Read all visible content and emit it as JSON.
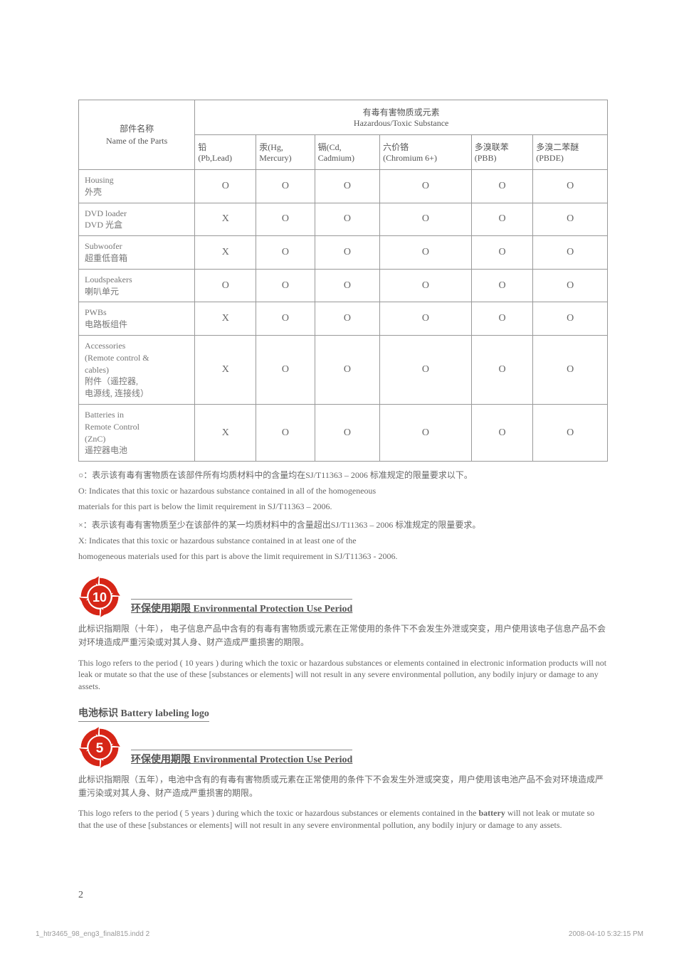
{
  "table": {
    "header_group": "有毒有害物质或元素\nHazardous/Toxic Substance",
    "parts_label_cn": "部件名称",
    "parts_label_en": "Name of the Parts",
    "columns": [
      {
        "cn": "铅",
        "en": "(Pb,Lead)"
      },
      {
        "cn": "汞(Hg,",
        "en": "Mercury)"
      },
      {
        "cn": "镉(Cd,",
        "en": "Cadmium)"
      },
      {
        "cn": "六价铬",
        "en": "(Chromium 6+)"
      },
      {
        "cn": "多溴联苯",
        "en": "(PBB)"
      },
      {
        "cn": "多溴二苯醚",
        "en": "(PBDE)"
      }
    ],
    "rows": [
      {
        "name": "Housing\n外壳",
        "vals": [
          "O",
          "O",
          "O",
          "O",
          "O",
          "O"
        ]
      },
      {
        "name": "DVD loader\nDVD 光盒",
        "vals": [
          "X",
          "O",
          "O",
          "O",
          "O",
          "O"
        ]
      },
      {
        "name": "Subwoofer\n超重低音箱",
        "vals": [
          "X",
          "O",
          "O",
          "O",
          "O",
          "O"
        ]
      },
      {
        "name": "Loudspeakers\n喇叭单元",
        "vals": [
          "O",
          "O",
          "O",
          "O",
          "O",
          "O"
        ]
      },
      {
        "name": "PWBs\n电路板组件",
        "vals": [
          "X",
          "O",
          "O",
          "O",
          "O",
          "O"
        ]
      },
      {
        "name": "Accessories\n(Remote control &\ncables)\n附件（遥控器,\n电源线, 连接线）",
        "vals": [
          "X",
          "O",
          "O",
          "O",
          "O",
          "O"
        ]
      },
      {
        "name": "Batteries in\nRemote Control\n(ZnC)\n遥控器电池",
        "vals": [
          "X",
          "O",
          "O",
          "O",
          "O",
          "O"
        ]
      }
    ]
  },
  "notes": {
    "o_cn": "○：表示该有毒有害物质在该部件所有均质材料中的含量均在SJ/T11363 – 2006 标准规定的限量要求以下。",
    "o_en1": "O: Indicates that this toxic or hazardous substance contained in all of the homogeneous",
    "o_en2": "materials for this part is below the limit requirement in SJ/T11363 – 2006.",
    "x_cn": "×：表示该有毒有害物质至少在该部件的某一均质材料中的含量超出SJ/T11363 – 2006 标准规定的限量要求。",
    "x_en1": "X: Indicates that this toxic or hazardous substance contained in at least one of the",
    "x_en2": "homogeneous materials used for this part is above the limit requirement in SJ/T11363 - 2006."
  },
  "ep10": {
    "title": "环保使用期限 Environmental Protection Use Period",
    "number": "10",
    "cn": "此标识指期限（十年）， 电子信息产品中含有的有毒有害物质或元素在正常使用的条件下不会发生外泄或突变，用户使用该电子信息产品不会对环境造成严重污染或对其人身、财产造成严重损害的期限。",
    "en": "This logo refers to the period ( 10 years ) during which the toxic or hazardous substances or elements contained in electronic information products will not leak or mutate so that the use of these [substances or elements] will not result in any severe environmental pollution, any bodily injury or damage to any assets."
  },
  "battery": {
    "title": "电池标识 Battery labeling logo",
    "ep_title": "环保使用期限 Environmental Protection Use Period",
    "number": "5",
    "cn": "此标识指期限（五年），电池中含有的有毒有害物质或元素在正常使用的条件下不会发生外泄或突变，用户使用该电池产品不会对环境造成严重污染或对其人身、财产造成严重损害的期限。",
    "en_p1": "This logo refers to the period ( 5 years ) during which the toxic or hazardous substances or elements contained in the ",
    "en_bold": "battery",
    "en_p2": " will not leak or mutate so that the use of these [substances or elements] will not result in any severe environmental pollution, any bodily injury or damage to any assets."
  },
  "page_number": "2",
  "footer": {
    "file": "1_htr3465_98_eng3_final815.indd   2",
    "timestamp": "2008-04-10   5:32:15 PM"
  },
  "colors": {
    "icon_red": "#d62617",
    "icon_text": "#ffffff",
    "border": "#999999"
  }
}
